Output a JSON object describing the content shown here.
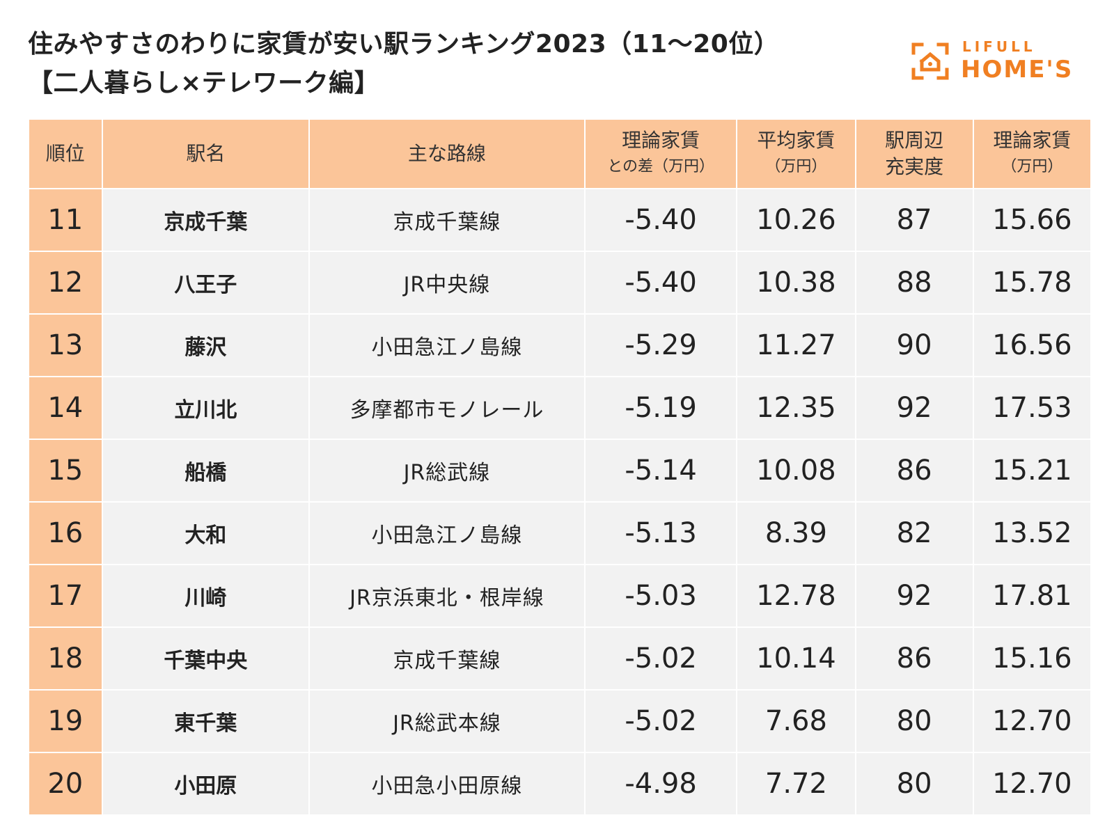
{
  "title": {
    "line1": "住みやすさのわりに家賃が安い駅ランキング2023（11～20位）",
    "line2": "【二人暮らし×テレワーク編】"
  },
  "logo": {
    "top": "LIFULL",
    "bottom": "HOME'S",
    "icon": "house-icon",
    "color": "#f07f22"
  },
  "colors": {
    "header_bg": "#fbc599",
    "cell_bg": "#f2f2f2"
  },
  "table": {
    "headers": {
      "rank": "順位",
      "station": "駅名",
      "line": "主な路線",
      "diff": [
        "理論家賃",
        "との差（万円）"
      ],
      "avg": [
        "平均家賃",
        "（万円）"
      ],
      "score": [
        "駅周辺",
        "充実度"
      ],
      "theory": [
        "理論家賃",
        "（万円）"
      ]
    },
    "rows": [
      {
        "rank": "11",
        "station": "京成千葉",
        "line": "京成千葉線",
        "diff": "-5.40",
        "avg": "10.26",
        "score": "87",
        "theory": "15.66"
      },
      {
        "rank": "12",
        "station": "八王子",
        "line": "JR中央線",
        "diff": "-5.40",
        "avg": "10.38",
        "score": "88",
        "theory": "15.78"
      },
      {
        "rank": "13",
        "station": "藤沢",
        "line": "小田急江ノ島線",
        "diff": "-5.29",
        "avg": "11.27",
        "score": "90",
        "theory": "16.56"
      },
      {
        "rank": "14",
        "station": "立川北",
        "line": "多摩都市モノレール",
        "diff": "-5.19",
        "avg": "12.35",
        "score": "92",
        "theory": "17.53"
      },
      {
        "rank": "15",
        "station": "船橋",
        "line": "JR総武線",
        "diff": "-5.14",
        "avg": "10.08",
        "score": "86",
        "theory": "15.21"
      },
      {
        "rank": "16",
        "station": "大和",
        "line": "小田急江ノ島線",
        "diff": "-5.13",
        "avg": "8.39",
        "score": "82",
        "theory": "13.52"
      },
      {
        "rank": "17",
        "station": "川崎",
        "line": "JR京浜東北・根岸線",
        "diff": "-5.03",
        "avg": "12.78",
        "score": "92",
        "theory": "17.81"
      },
      {
        "rank": "18",
        "station": "千葉中央",
        "line": "京成千葉線",
        "diff": "-5.02",
        "avg": "10.14",
        "score": "86",
        "theory": "15.16"
      },
      {
        "rank": "19",
        "station": "東千葉",
        "line": "JR総武本線",
        "diff": "-5.02",
        "avg": "7.68",
        "score": "80",
        "theory": "12.70"
      },
      {
        "rank": "20",
        "station": "小田原",
        "line": "小田急小田原線",
        "diff": "-4.98",
        "avg": "7.72",
        "score": "80",
        "theory": "12.70"
      }
    ]
  }
}
